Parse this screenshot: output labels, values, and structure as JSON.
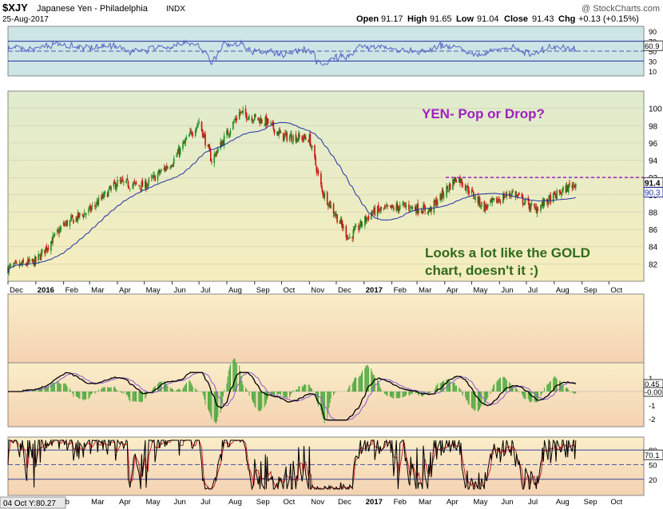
{
  "header": {
    "symbol": "$XJY",
    "name": "Japanese Yen - Philadelphia",
    "exchange": "INDX",
    "date": "25-Aug-2017",
    "copyright": "@ StockCharts.com",
    "ohlc": {
      "open_label": "Open",
      "open": "91.17",
      "high_label": "High",
      "high": "91.65",
      "low_label": "Low",
      "low": "91.04",
      "close_label": "Close",
      "close": "91.43",
      "chg_label": "Chg",
      "chg": "+0.13 (+0.15%)"
    }
  },
  "annotations": {
    "headline": "YEN-  Pop or Drop?",
    "note_line1": "Looks a lot like the GOLD",
    "note_line2": "chart, doesn't it :)",
    "resistance_level": 92,
    "cursor_readout": "04 Oct Y:80.27"
  },
  "colors": {
    "rsi_bg": "#cde5e5",
    "price_bg_top": "#e2edcf",
    "price_bg_bottom": "#f5ecbd",
    "lower_bg_top": "#f9ebc5",
    "lower_bg_bottom": "#f5d5b5",
    "rsi_line": "#5563c8",
    "ma_line": "#2230a0",
    "up_candle": "#228b22",
    "down_candle": "#cc1111",
    "annotation_purple": "#a020c0",
    "annotation_green": "#2f6b1c",
    "histogram": "#4aa83a",
    "stoch_k": "#000000",
    "stoch_d": "#cc2222"
  },
  "chart_data": {
    "type": "candlestick",
    "x_axis_labels": [
      "Dec",
      "2016",
      "Feb",
      "Mar",
      "Apr",
      "May",
      "Jun",
      "Jul",
      "Aug",
      "Sep",
      "Oct",
      "Nov",
      "Dec",
      "2017",
      "Feb",
      "Mar",
      "Apr",
      "May",
      "Jun",
      "Jul",
      "Aug",
      "Sep",
      "Oct"
    ],
    "x_axis_labels_bottom": [
      "b",
      "Mar",
      "Apr",
      "May",
      "Jun",
      "Jul",
      "Aug",
      "Sep",
      "Oct",
      "Nov",
      "Dec",
      "2017",
      "Feb",
      "Mar",
      "Apr",
      "May",
      "Jun",
      "Jul",
      "Aug",
      "Sep",
      "Oct"
    ],
    "price_ylim": [
      80,
      102
    ],
    "price_ticks": [
      82,
      84,
      86,
      88,
      90,
      92,
      94,
      96,
      98,
      100
    ],
    "close_price_samples": [
      [
        "2015-12-01",
        81.5
      ],
      [
        "2016-01-01",
        82.3
      ],
      [
        "2016-02-01",
        86.5
      ],
      [
        "2016-03-01",
        88.2
      ],
      [
        "2016-04-01",
        91.4
      ],
      [
        "2016-05-01",
        91.0
      ],
      [
        "2016-06-01",
        93.8
      ],
      [
        "2016-07-01",
        98.5
      ],
      [
        "2016-07-15",
        94.0
      ],
      [
        "2016-08-15",
        99.5
      ],
      [
        "2016-09-15",
        98.4
      ],
      [
        "2016-10-01",
        96.8
      ],
      [
        "2016-11-01",
        96.5
      ],
      [
        "2016-11-15",
        90.5
      ],
      [
        "2016-12-15",
        85.0
      ],
      [
        "2017-01-10",
        88.0
      ],
      [
        "2017-02-15",
        88.7
      ],
      [
        "2017-03-15",
        88.2
      ],
      [
        "2017-04-15",
        92.1
      ],
      [
        "2017-05-15",
        88.5
      ],
      [
        "2017-06-15",
        90.3
      ],
      [
        "2017-07-10",
        88.3
      ],
      [
        "2017-08-25",
        91.43
      ]
    ],
    "moving_average_last": 90.3,
    "last_close_label": "91.4",
    "ma_label": "90.3",
    "rsi": {
      "ticks": [
        10,
        30,
        50,
        70,
        90
      ],
      "last": "60.9",
      "lines": [
        30,
        70
      ]
    },
    "macd": {
      "ticks": [
        -2,
        -1,
        0,
        1
      ],
      "last_macd": "0.45",
      "last_signal": "-0.00"
    },
    "stochastic": {
      "ticks": [
        20,
        50,
        80
      ],
      "last": "70.1"
    }
  }
}
